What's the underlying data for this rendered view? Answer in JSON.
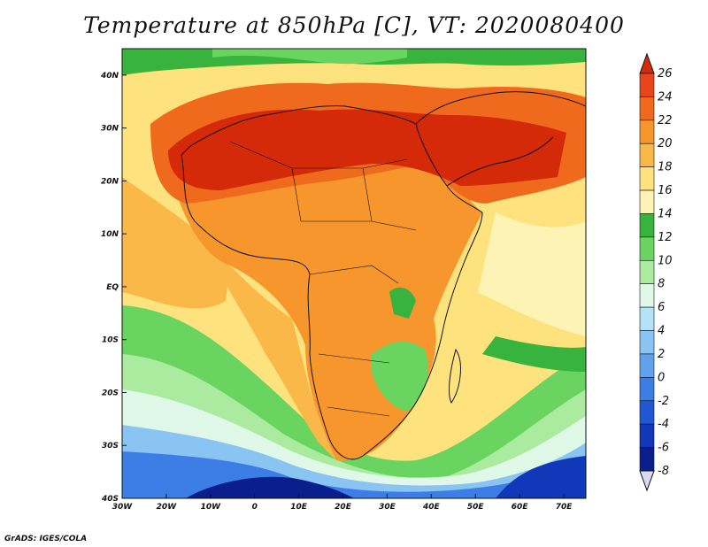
{
  "title": "Temperature at 850hPa [C], VT: 2020080400",
  "credit": "GrADS: IGES/COLA",
  "lon_ticks": [
    "30W",
    "20W",
    "10W",
    "0",
    "10E",
    "20E",
    "30E",
    "40E",
    "50E",
    "60E",
    "70E"
  ],
  "lat_ticks": [
    "40N",
    "30N",
    "20N",
    "10N",
    "EQ",
    "10S",
    "20S",
    "30S",
    "40S"
  ],
  "colorbar": {
    "labels": [
      "26",
      "24",
      "22",
      "20",
      "18",
      "16",
      "14",
      "12",
      "10",
      "8",
      "6",
      "4",
      "2",
      "0",
      "-2",
      "-4",
      "-6",
      "-8"
    ],
    "colors": [
      "#d42a0a",
      "#e8461a",
      "#f06a1e",
      "#f7962c",
      "#fab848",
      "#fde27e",
      "#fdf3b4",
      "#38b43e",
      "#6ad460",
      "#aaeba0",
      "#e0f8e8",
      "#b4e2f8",
      "#8ac4f2",
      "#62a2ec",
      "#3c7ee6",
      "#2058d4",
      "#1038b8",
      "#0a1f8c"
    ]
  },
  "map": {
    "lon_range": [
      -30,
      75
    ],
    "lat_range": [
      -40,
      45
    ],
    "variable": "Temperature at 850hPa",
    "units": "C"
  }
}
